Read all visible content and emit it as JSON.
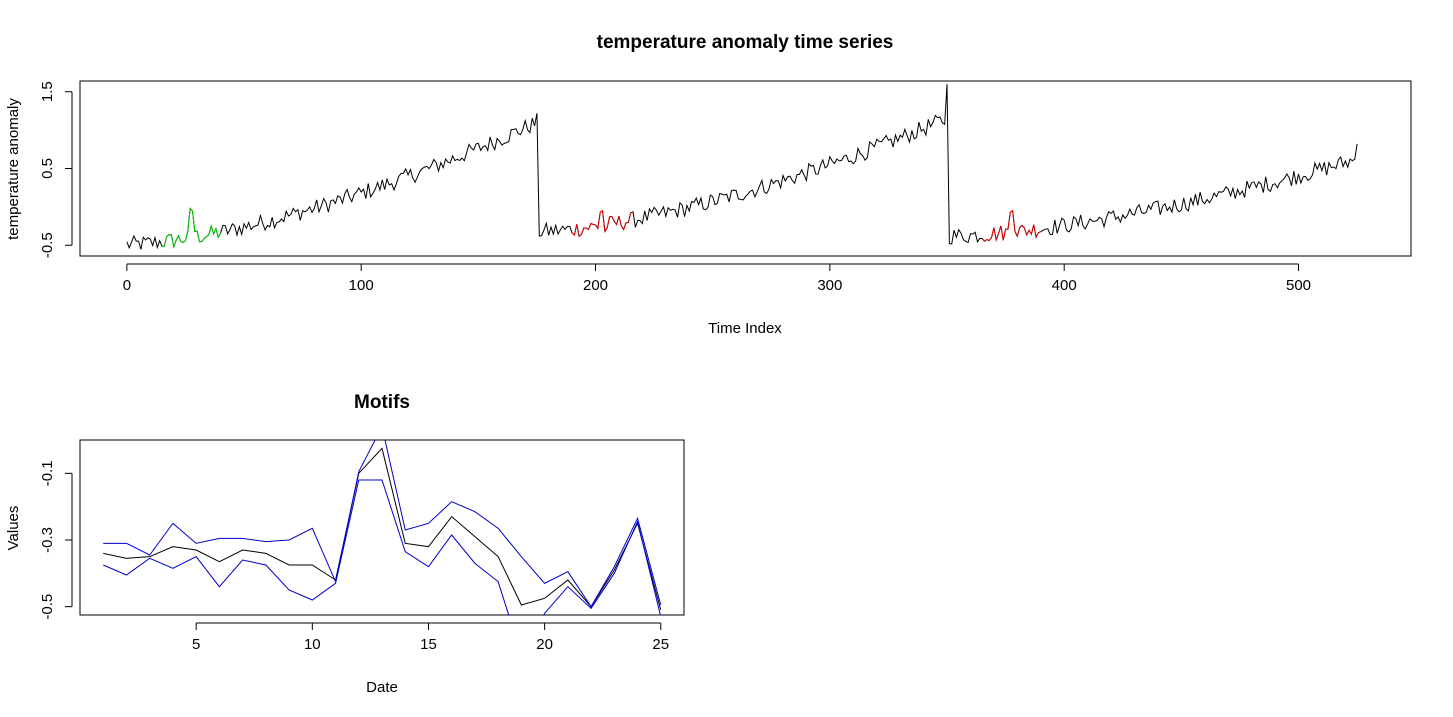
{
  "chart_data": [
    {
      "type": "line",
      "title": "temperature anomaly time series",
      "xlabel": "Time Index",
      "ylabel": "temperature anomaly",
      "xlim": [
        -20,
        548
      ],
      "ylim": [
        -0.64,
        1.64
      ],
      "xticks": [
        0,
        100,
        200,
        300,
        400,
        500
      ],
      "yticks": [
        -0.5,
        0.5,
        1.5
      ],
      "ytick_labels": [
        "-0.5",
        "0.5",
        "1.5"
      ],
      "grid": false,
      "n_points": 526,
      "main_color": "#000000",
      "trend_segments": [
        {
          "start": 0,
          "end": 175,
          "from": -0.49,
          "to": 1.1,
          "peak": 1.22
        },
        {
          "start": 176,
          "end": 350,
          "from": -0.32,
          "to": 1.15,
          "peak": 1.6
        },
        {
          "start": 351,
          "end": 525,
          "from": -0.38,
          "to": 0.62,
          "end_value": 0.82
        }
      ],
      "highlighted_motifs": [
        {
          "start": 15,
          "end": 40,
          "color": "#00cc00"
        },
        {
          "start": 190,
          "end": 215,
          "color": "#dd0000"
        },
        {
          "start": 365,
          "end": 390,
          "color": "#dd0000"
        }
      ]
    },
    {
      "type": "line",
      "title": "Motifs",
      "xlabel": "Date",
      "ylabel": "Values",
      "xlim": [
        0,
        26
      ],
      "ylim": [
        -0.525,
        0.0
      ],
      "xticks": [
        5,
        10,
        15,
        20,
        25
      ],
      "yticks": [
        -0.5,
        -0.3,
        -0.1
      ],
      "ytick_labels": [
        "-0.5",
        "-0.3",
        "-0.1"
      ],
      "grid": false,
      "x": [
        1,
        2,
        3,
        4,
        5,
        6,
        7,
        8,
        9,
        10,
        11,
        12,
        13,
        14,
        15,
        16,
        17,
        18,
        19,
        20,
        21,
        22,
        23,
        24,
        25
      ],
      "series": [
        {
          "color": "#000000",
          "values": [
            -0.34,
            -0.355,
            -0.35,
            -0.32,
            -0.33,
            -0.365,
            -0.33,
            -0.34,
            -0.375,
            -0.375,
            -0.42,
            -0.1,
            -0.025,
            -0.31,
            -0.32,
            -0.23,
            -0.29,
            -0.35,
            -0.495,
            -0.475,
            -0.42,
            -0.5,
            -0.39,
            -0.25,
            -0.51
          ]
        },
        {
          "color": "#0000cc",
          "values": [
            -0.31,
            -0.31,
            -0.345,
            -0.25,
            -0.31,
            -0.295,
            -0.295,
            -0.305,
            -0.3,
            -0.265,
            -0.425,
            -0.095,
            0.04,
            -0.27,
            -0.25,
            -0.185,
            -0.215,
            -0.265,
            -0.35,
            -0.43,
            -0.395,
            -0.5,
            -0.38,
            -0.235,
            -0.495
          ]
        },
        {
          "color": "#0000cc",
          "values": [
            -0.375,
            -0.405,
            -0.355,
            -0.385,
            -0.35,
            -0.44,
            -0.36,
            -0.375,
            -0.45,
            -0.48,
            -0.43,
            -0.12,
            -0.12,
            -0.335,
            -0.38,
            -0.285,
            -0.37,
            -0.425,
            -0.645,
            -0.52,
            -0.44,
            -0.505,
            -0.4,
            -0.245,
            -0.53
          ]
        }
      ]
    }
  ]
}
